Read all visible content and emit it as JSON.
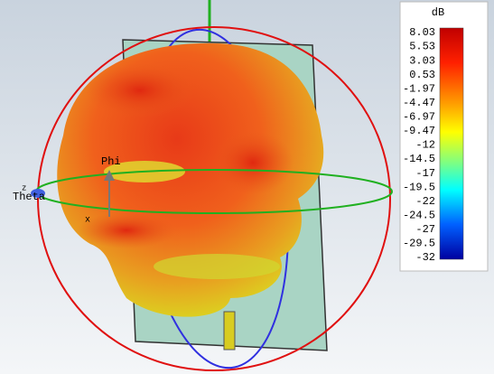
{
  "legend": {
    "unit": "dB",
    "labels": [
      "8.03",
      "5.53",
      "3.03",
      "0.53",
      "-1.97",
      "-4.47",
      "-6.97",
      "-9.47",
      "-12",
      "-14.5",
      "-17",
      "-19.5",
      "-22",
      "-24.5",
      "-27",
      "-29.5",
      "-32"
    ]
  },
  "axis_labels": {
    "phi": "Phi",
    "z": "z",
    "theta": "Theta",
    "x": "x"
  }
}
